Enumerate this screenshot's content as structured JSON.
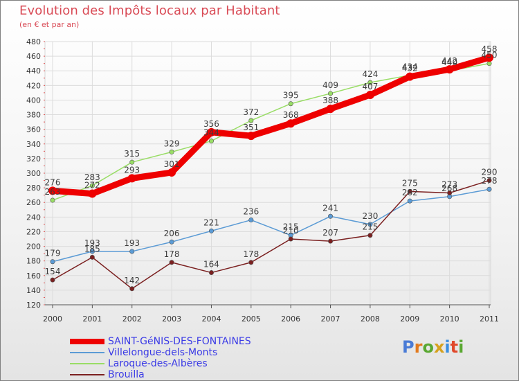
{
  "header": {
    "title": "Evolution des Impôts locaux par Habitant",
    "subtitle": "(en € et par an)"
  },
  "logo": {
    "text": "Proxiti",
    "letter_colors": [
      "#4a7bd6",
      "#e27a1e",
      "#5aa832",
      "#d6a21e",
      "#3a8ee0",
      "#e0482a",
      "#5aa832"
    ]
  },
  "chart_data": {
    "type": "line",
    "title": "Evolution des Impôts locaux par Habitant",
    "subtitle": "(en € et par an)",
    "xlabel": "",
    "ylabel": "",
    "categories": [
      "2000",
      "2001",
      "2002",
      "2003",
      "2004",
      "2005",
      "2006",
      "2007",
      "2008",
      "2009",
      "2010",
      "2011"
    ],
    "ylim": [
      120,
      480
    ],
    "yticks": [
      120,
      140,
      160,
      180,
      200,
      220,
      240,
      260,
      280,
      300,
      320,
      340,
      360,
      380,
      400,
      420,
      440,
      460,
      480
    ],
    "grid": true,
    "legend_position": "bottom-left",
    "series": [
      {
        "name": "SAINT-GéNIS-DES-FONTAINES",
        "color": "#ee0000",
        "emphasis": true,
        "values": [
          276,
          272,
          293,
          301,
          356,
          351,
          368,
          388,
          407,
          432,
          442,
          458
        ]
      },
      {
        "name": "Villelongue-dels-Monts",
        "color": "#5b9bd5",
        "emphasis": false,
        "values": [
          179,
          193,
          193,
          206,
          221,
          236,
          215,
          241,
          230,
          262,
          268,
          278
        ]
      },
      {
        "name": "Laroque-des-Albères",
        "color": "#99dd66",
        "emphasis": false,
        "values": [
          263,
          283,
          315,
          329,
          344,
          372,
          395,
          409,
          424,
          434,
          440,
          450
        ]
      },
      {
        "name": "Brouilla",
        "color": "#7b2020",
        "emphasis": false,
        "values": [
          154,
          185,
          142,
          178,
          164,
          178,
          210,
          207,
          215,
          275,
          273,
          290
        ]
      }
    ]
  }
}
